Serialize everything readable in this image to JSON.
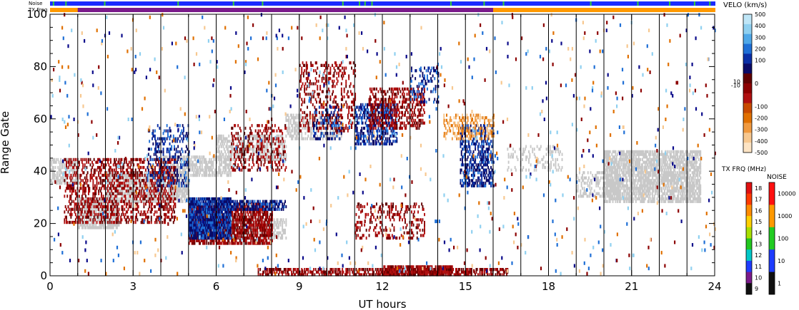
{
  "header": {
    "noise_label": "Noise",
    "txfreq_label": "TX Freq"
  },
  "chart_data": {
    "type": "heatmap",
    "xlabel": "UT hours",
    "ylabel": "Range Gate",
    "xlim": [
      0,
      24
    ],
    "ylim": [
      0,
      100
    ],
    "x_ticks": [
      "0",
      "3",
      "6",
      "9",
      "12",
      "15",
      "18",
      "21",
      "24"
    ],
    "y_ticks": [
      "0",
      "20",
      "40",
      "60",
      "80",
      "100"
    ],
    "scan_boundaries_hours": [
      1,
      2,
      3,
      4,
      5,
      6,
      7,
      8,
      9,
      10,
      11,
      12,
      13,
      14,
      15,
      16,
      17,
      18,
      19,
      20,
      21,
      22,
      23
    ],
    "velocity_colorbar": {
      "title": "VELO (km/s)",
      "labels": [
        "500",
        "400",
        "300",
        "200",
        "100",
        "10",
        "0",
        "-10",
        "-100",
        "-200",
        "-300",
        "-400",
        "-500"
      ],
      "colors": [
        "#bfe6f7",
        "#8fd0f0",
        "#4fa8e8",
        "#1f6fd6",
        "#0a2fa6",
        "#0a0a66",
        "#600000",
        "#8c0000",
        "#b01010",
        "#c84a00",
        "#e07000",
        "#f09a40",
        "#f7c890",
        "#fde4c4"
      ]
    },
    "txfreq_colorbar": {
      "title": "TX FRQ (MHz)",
      "labels": [
        "18",
        "17",
        "16",
        "15",
        "14",
        "13",
        "12",
        "11",
        "10",
        "9"
      ],
      "colors": [
        "#e01010",
        "#ff3a00",
        "#ff8c00",
        "#ffd000",
        "#a8e000",
        "#22c81e",
        "#00c8c8",
        "#1e3cff",
        "#7a1a8a",
        "#101010"
      ]
    },
    "noise_colorbar": {
      "title": "NOISE",
      "labels": [
        "10000",
        "1000",
        "100",
        "10",
        "1"
      ],
      "colors": [
        "#ff1010",
        "#ff9900",
        "#22cc22",
        "#1e3cff",
        "#101010"
      ]
    },
    "noise_strip": {
      "base_color": "#1a2bff",
      "marker_color": "#33cc33",
      "marker_hours": [
        0.1,
        0.55,
        1.95,
        4.6,
        6.6,
        7.65,
        10.55,
        11.15,
        11.35,
        11.6,
        14.45,
        15.65,
        16.35,
        19.5,
        21.2,
        22.35,
        23.25,
        23.8
      ]
    },
    "txfreq_strip": {
      "segments": [
        {
          "start": 0.0,
          "end": 1.0,
          "color": "#ff9900"
        },
        {
          "start": 1.0,
          "end": 16.0,
          "color": "#7a1a8a"
        },
        {
          "start": 16.0,
          "end": 24.0,
          "color": "#ff9900"
        }
      ]
    },
    "ground_scatter_color": "#c8c8c8",
    "echo_regions": [
      {
        "kind": "ground",
        "t0": 0.0,
        "t1": 1.0,
        "g0": 35,
        "g1": 45,
        "density": 0.55
      },
      {
        "kind": "ground",
        "t0": 1.0,
        "t1": 2.5,
        "g0": 18,
        "g1": 30,
        "density": 0.75
      },
      {
        "kind": "ground",
        "t0": 2.0,
        "t1": 5.0,
        "g0": 28,
        "g1": 40,
        "density": 0.65
      },
      {
        "kind": "ground",
        "t0": 4.0,
        "t1": 6.5,
        "g0": 38,
        "g1": 46,
        "density": 0.55
      },
      {
        "kind": "ground",
        "t0": 5.5,
        "t1": 8.5,
        "g0": 14,
        "g1": 22,
        "density": 0.55
      },
      {
        "kind": "ground",
        "t0": 6.0,
        "t1": 8.5,
        "g0": 44,
        "g1": 54,
        "density": 0.45
      },
      {
        "kind": "ground",
        "t0": 8.5,
        "t1": 10.5,
        "g0": 52,
        "g1": 62,
        "density": 0.4
      },
      {
        "kind": "ground",
        "t0": 16.5,
        "t1": 18.5,
        "g0": 40,
        "g1": 50,
        "density": 0.22
      },
      {
        "kind": "ground",
        "t0": 19.0,
        "t1": 20.5,
        "g0": 30,
        "g1": 40,
        "density": 0.35
      },
      {
        "kind": "ground",
        "t0": 20.0,
        "t1": 23.5,
        "g0": 28,
        "g1": 48,
        "density": 0.7
      },
      {
        "kind": "neg",
        "t0": 0.5,
        "t1": 4.5,
        "g0": 20,
        "g1": 45,
        "density": 0.35
      },
      {
        "kind": "neg",
        "t0": 5.0,
        "t1": 8.0,
        "g0": 12,
        "g1": 28,
        "density": 0.7
      },
      {
        "kind": "pos",
        "t0": 5.0,
        "t1": 6.5,
        "g0": 14,
        "g1": 30,
        "density": 0.85
      },
      {
        "kind": "pos",
        "t0": 3.5,
        "t1": 5.0,
        "g0": 34,
        "g1": 58,
        "density": 0.22
      },
      {
        "kind": "pos",
        "t0": 6.5,
        "t1": 8.5,
        "g0": 25,
        "g1": 29,
        "density": 0.6
      },
      {
        "kind": "neg",
        "t0": 6.5,
        "t1": 8.5,
        "g0": 40,
        "g1": 58,
        "density": 0.25
      },
      {
        "kind": "neg",
        "t0": 9.0,
        "t1": 11.0,
        "g0": 55,
        "g1": 82,
        "density": 0.22
      },
      {
        "kind": "pos",
        "t0": 9.5,
        "t1": 10.5,
        "g0": 52,
        "g1": 65,
        "density": 0.22
      },
      {
        "kind": "pos",
        "t0": 11.0,
        "t1": 12.5,
        "g0": 50,
        "g1": 66,
        "density": 0.45
      },
      {
        "kind": "neg",
        "t0": 11.5,
        "t1": 13.5,
        "g0": 56,
        "g1": 72,
        "density": 0.35
      },
      {
        "kind": "pos",
        "t0": 13.0,
        "t1": 14.0,
        "g0": 66,
        "g1": 80,
        "density": 0.25
      },
      {
        "kind": "neg",
        "t0": 11.0,
        "t1": 13.5,
        "g0": 14,
        "g1": 28,
        "density": 0.2
      },
      {
        "kind": "pos",
        "t0": 14.8,
        "t1": 16.0,
        "g0": 34,
        "g1": 58,
        "density": 0.45
      },
      {
        "kind": "negorange",
        "t0": 14.2,
        "t1": 16.0,
        "g0": 52,
        "g1": 62,
        "density": 0.3
      },
      {
        "kind": "neg",
        "t0": 7.5,
        "t1": 16.5,
        "g0": 0,
        "g1": 3,
        "density": 0.55
      },
      {
        "kind": "neg",
        "t0": 12.0,
        "t1": 14.5,
        "g0": 0,
        "g1": 4,
        "density": 0.8
      }
    ],
    "sparse_noise_colors": [
      "#0a0a8a",
      "#8c0000",
      "#8fd0f0",
      "#e07000",
      "#f7c890",
      "#1f6fd6"
    ]
  }
}
